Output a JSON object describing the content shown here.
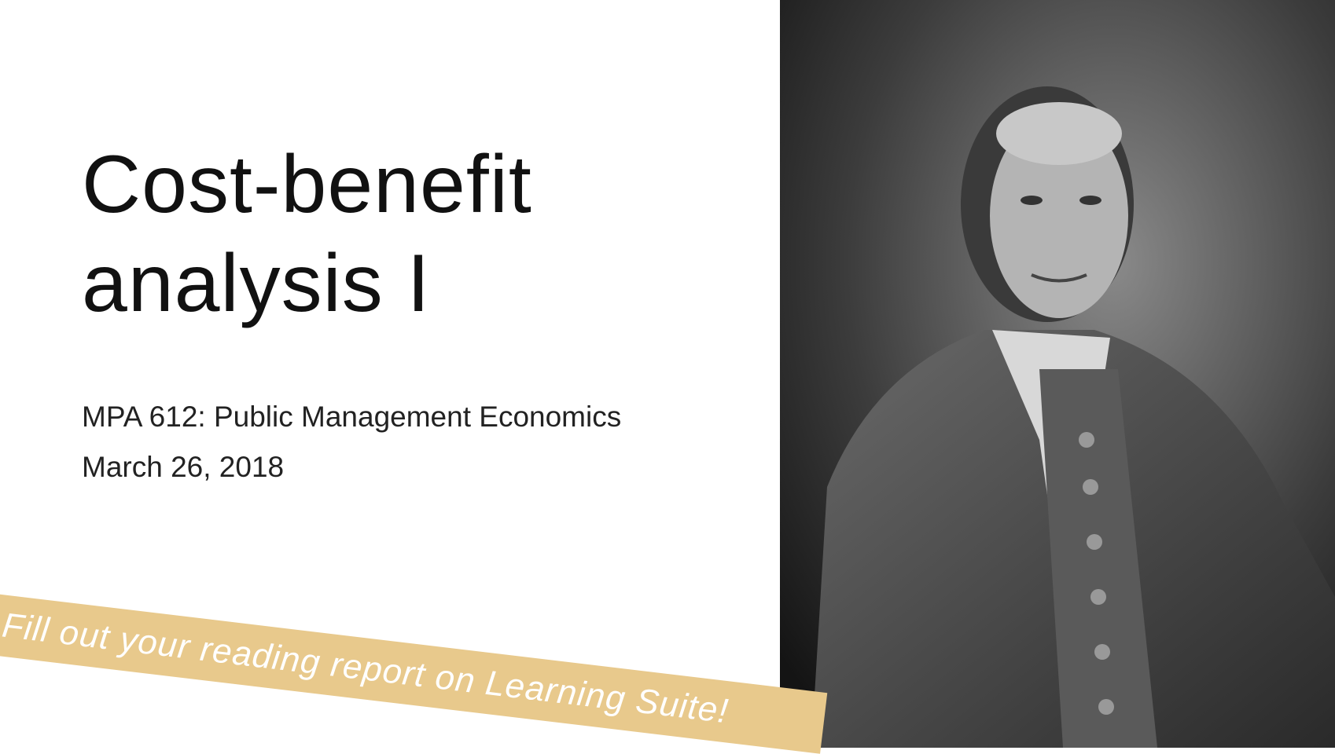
{
  "slide": {
    "title_lines": [
      "Cost-benefit",
      "analysis I"
    ],
    "subtitle": "MPA 612: Public Management Economics",
    "date": "March 26, 2018",
    "banner": "Fill out your reading report on Learning Suite!"
  }
}
